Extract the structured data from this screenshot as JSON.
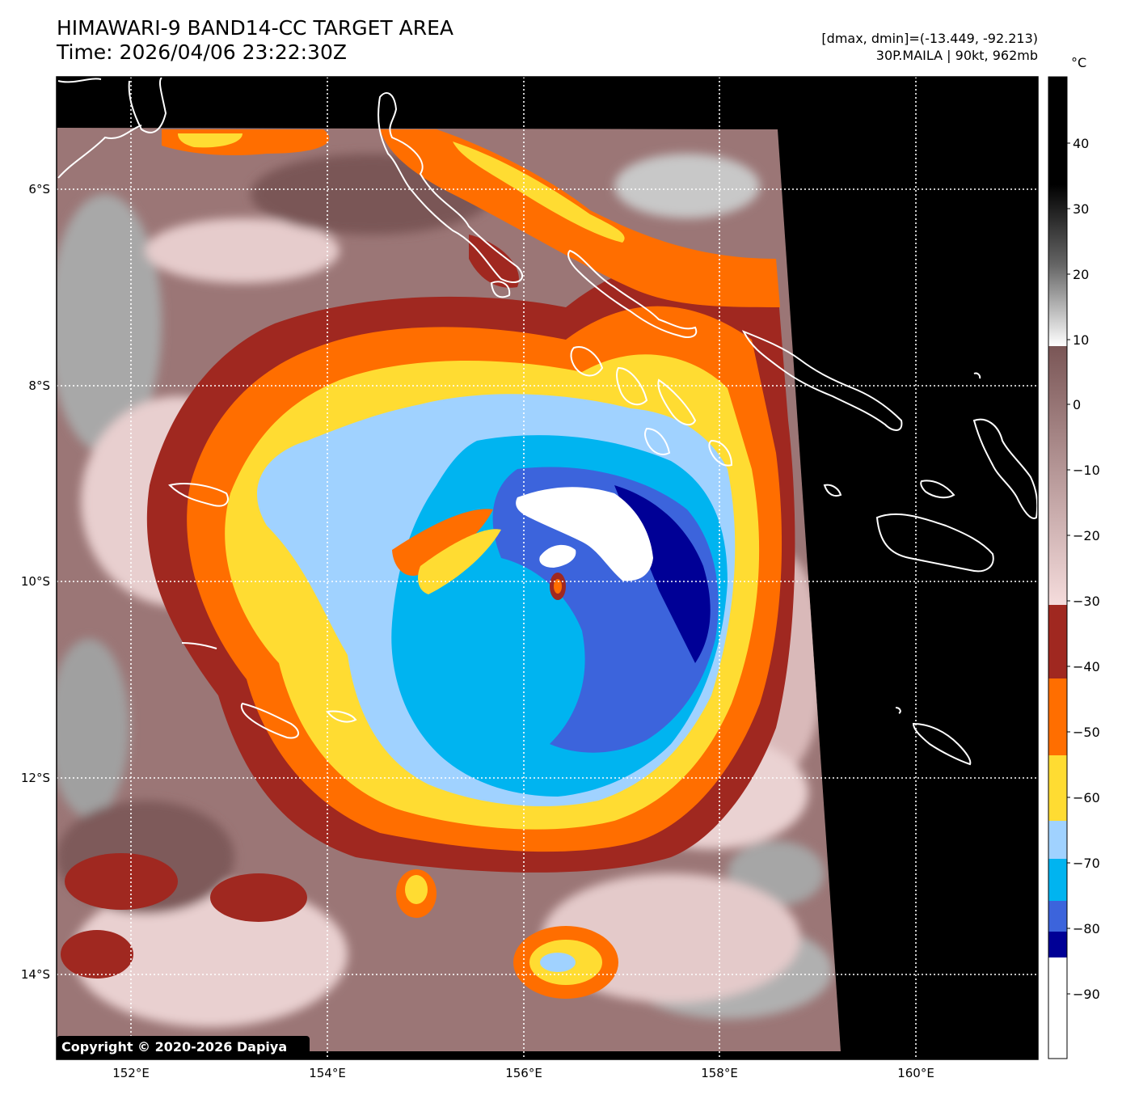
{
  "header": {
    "title": "HIMAWARI-9 BAND14-CC TARGET AREA",
    "time": "Time: 2026/04/06 23:22:30Z",
    "dmax_dmin": "[dmax, dmin]=(-13.449, -92.213)",
    "storm": "30P.MAILA | 90kt, 962mb"
  },
  "map": {
    "lon_labels": [
      "152°E",
      "154°E",
      "156°E",
      "158°E",
      "160°E"
    ],
    "lat_labels": [
      "6°S",
      "8°S",
      "10°S",
      "12°S",
      "14°S"
    ],
    "copyright": "Copyright © 2020-2026 Dapiya",
    "colors": {
      "white": "#ffffff",
      "navy": "#000096",
      "royal_blue": "#3c64dc",
      "deep_sky": "#00b4f0",
      "light_blue": "#a0d2ff",
      "yellow": "#ffdc32",
      "orange": "#ff6e00",
      "brick": "#a02820",
      "pink": "#f0d2d2",
      "mauve": "#8c6464",
      "gray": "#9a9a9a",
      "black": "#000000"
    }
  },
  "colorbar": {
    "unit": "°C",
    "ticks": [
      "40",
      "30",
      "20",
      "10",
      "0",
      "−10",
      "−20",
      "−30",
      "−40",
      "−50",
      "−60",
      "−70",
      "−80",
      "−90"
    ]
  }
}
